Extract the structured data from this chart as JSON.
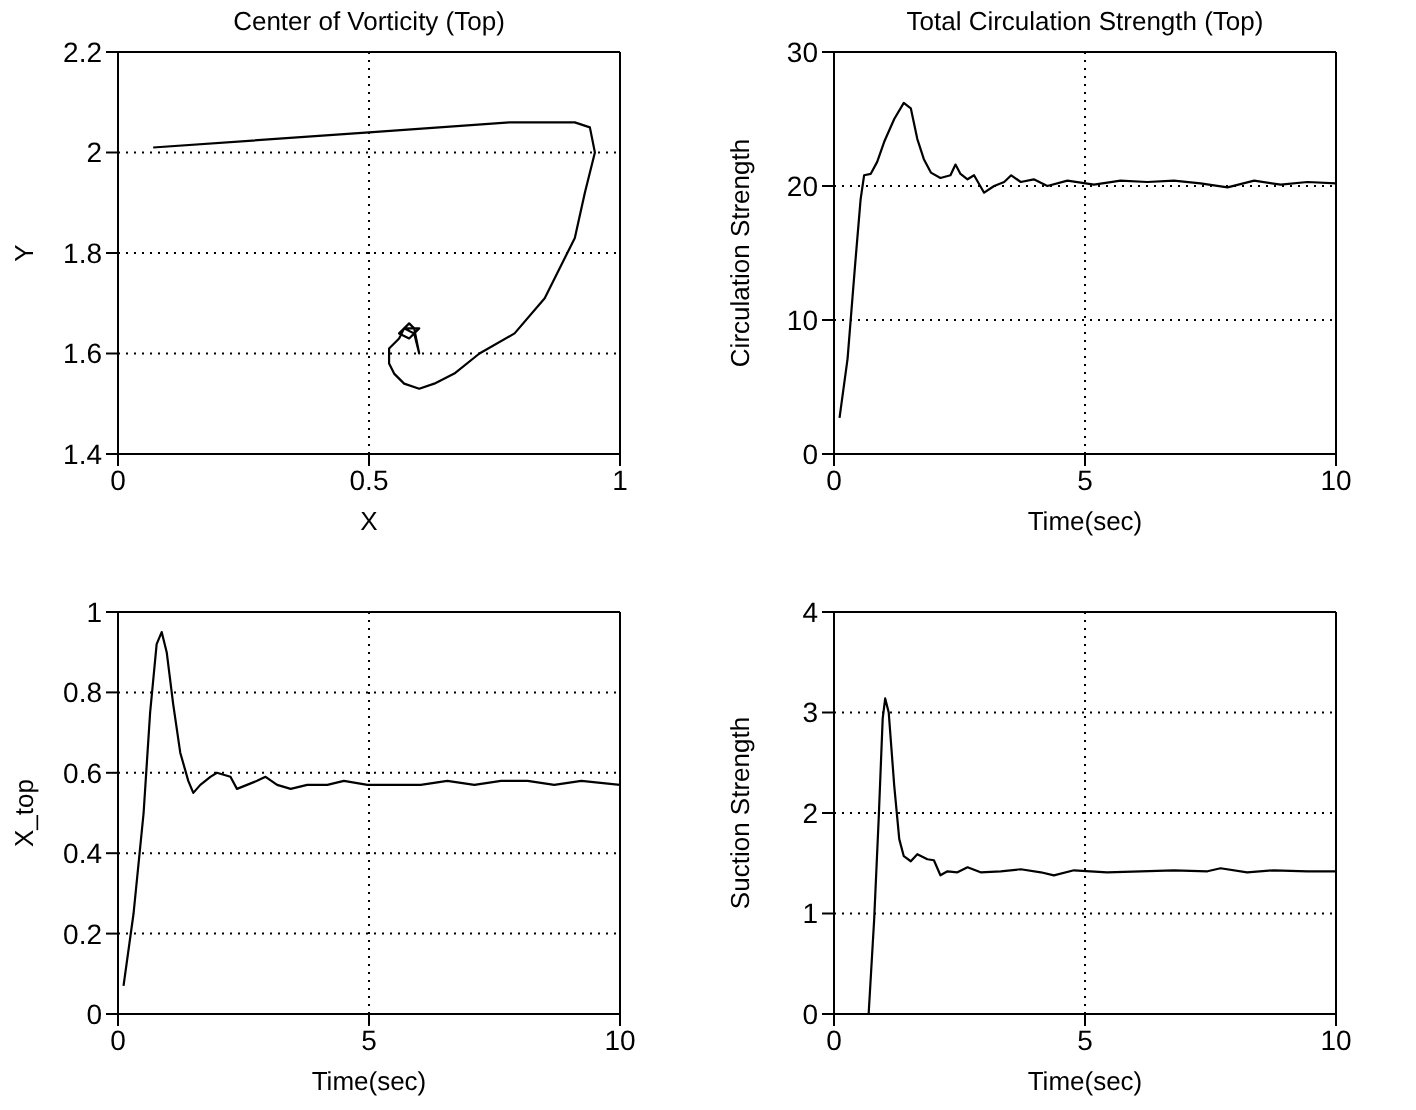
{
  "chart_data": [
    {
      "type": "line",
      "title": "Center of Vorticity (Top)",
      "xlabel": "X",
      "ylabel": "Y",
      "color": "#000000",
      "grid": true,
      "xlim": [
        0,
        1
      ],
      "xticks": [
        0,
        0.5,
        1
      ],
      "ylim": [
        1.4,
        2.2
      ],
      "yticks": [
        1.4,
        1.6,
        1.8,
        2,
        2.2
      ],
      "x": [
        0.07,
        0.5,
        0.78,
        0.85,
        0.91,
        0.94,
        0.95,
        0.93,
        0.91,
        0.85,
        0.79,
        0.72,
        0.67,
        0.63,
        0.6,
        0.57,
        0.55,
        0.54,
        0.54,
        0.56,
        0.57,
        0.59,
        0.6,
        0.59,
        0.58,
        0.56,
        0.58,
        0.6,
        0.58,
        0.57
      ],
      "values": [
        2.01,
        2.04,
        2.06,
        2.06,
        2.06,
        2.05,
        2,
        1.92,
        1.83,
        1.71,
        1.64,
        1.6,
        1.56,
        1.54,
        1.53,
        1.54,
        1.56,
        1.58,
        1.61,
        1.63,
        1.65,
        1.64,
        1.6,
        1.65,
        1.66,
        1.64,
        1.63,
        1.65,
        1.65,
        1.65
      ]
    },
    {
      "type": "line",
      "title": "Total Circulation Strength (Top)",
      "xlabel": "Time(sec)",
      "ylabel": "Circulation Strength",
      "color": "#000000",
      "grid": true,
      "xlim": [
        0,
        10
      ],
      "xticks": [
        0,
        5,
        10
      ],
      "ylim": [
        0,
        30
      ],
      "yticks": [
        0,
        10,
        20,
        30
      ],
      "x": [
        0.11,
        0.27,
        0.42,
        0.53,
        0.6,
        0.73,
        0.86,
        1,
        1.2,
        1.39,
        1.53,
        1.66,
        1.79,
        1.93,
        2.12,
        2.32,
        2.42,
        2.52,
        2.66,
        2.79,
        2.99,
        3.19,
        3.39,
        3.53,
        3.72,
        3.98,
        4.25,
        4.65,
        5.18,
        5.71,
        6.24,
        6.77,
        7.3,
        7.84,
        8.37,
        8.9,
        9.43,
        10
      ],
      "values": [
        2.7,
        7.1,
        14.1,
        19,
        20.8,
        20.9,
        21.8,
        23.3,
        25,
        26.2,
        25.8,
        23.5,
        22,
        21,
        20.6,
        20.8,
        21.6,
        20.9,
        20.5,
        20.8,
        19.5,
        20,
        20.3,
        20.8,
        20.3,
        20.5,
        20,
        20.4,
        20.1,
        20.4,
        20.3,
        20.4,
        20.2,
        19.9,
        20.4,
        20.1,
        20.3,
        20.2
      ]
    },
    {
      "type": "line",
      "xlabel": "Time(sec)",
      "ylabel": "X_top",
      "color": "#000000",
      "grid": true,
      "xlim": [
        0,
        10
      ],
      "xticks": [
        0,
        5,
        10
      ],
      "ylim": [
        0,
        1
      ],
      "yticks": [
        0,
        0.2,
        0.4,
        0.6,
        0.8,
        1
      ],
      "x": [
        0.11,
        0.31,
        0.51,
        0.64,
        0.77,
        0.87,
        0.97,
        1.1,
        1.24,
        1.4,
        1.5,
        1.64,
        1.84,
        1.97,
        2.24,
        2.37,
        2.57,
        2.77,
        2.94,
        3.17,
        3.44,
        3.77,
        4.17,
        4.5,
        4.97,
        5.5,
        6.03,
        6.56,
        7.1,
        7.63,
        8.16,
        8.69,
        9.23,
        10
      ],
      "values": [
        0.07,
        0.25,
        0.5,
        0.75,
        0.92,
        0.95,
        0.9,
        0.77,
        0.65,
        0.58,
        0.55,
        0.57,
        0.59,
        0.6,
        0.59,
        0.56,
        0.57,
        0.58,
        0.59,
        0.57,
        0.56,
        0.57,
        0.57,
        0.58,
        0.57,
        0.57,
        0.57,
        0.58,
        0.57,
        0.58,
        0.58,
        0.57,
        0.58,
        0.57
      ]
    },
    {
      "type": "line",
      "xlabel": "Time(sec)",
      "ylabel": "Suction Strength",
      "color": "#000000",
      "grid": true,
      "xlim": [
        0,
        10
      ],
      "xticks": [
        0,
        5,
        10
      ],
      "ylim": [
        0,
        4
      ],
      "yticks": [
        0,
        1,
        2,
        3,
        4
      ],
      "x": [
        0.69,
        0.8,
        0.89,
        0.97,
        1.02,
        1.09,
        1.2,
        1.3,
        1.39,
        1.53,
        1.66,
        1.86,
        1.99,
        2.12,
        2.26,
        2.46,
        2.66,
        2.92,
        3.32,
        3.72,
        4.12,
        4.38,
        4.78,
        5.44,
        6.11,
        6.77,
        7.44,
        7.7,
        8.23,
        8.76,
        9.43,
        10
      ],
      "values": [
        0,
        0.94,
        1.94,
        2.94,
        3.14,
        3,
        2.27,
        1.74,
        1.57,
        1.52,
        1.59,
        1.54,
        1.53,
        1.38,
        1.42,
        1.41,
        1.46,
        1.41,
        1.42,
        1.44,
        1.41,
        1.38,
        1.43,
        1.41,
        1.42,
        1.43,
        1.42,
        1.45,
        1.41,
        1.43,
        1.42,
        1.42
      ]
    }
  ]
}
